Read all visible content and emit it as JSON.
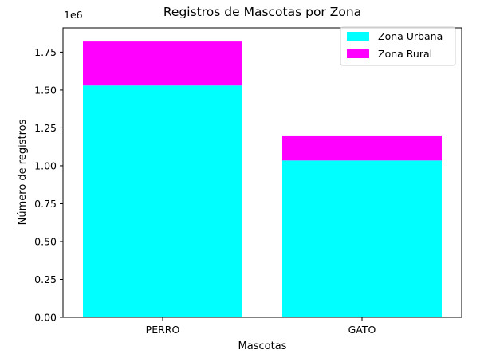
{
  "chart_data": {
    "type": "bar",
    "stacked": true,
    "title": "Registros de Mascotas por Zona",
    "xlabel": "Mascotas",
    "ylabel": "Número de registros",
    "categories": [
      "PERRO",
      "GATO"
    ],
    "series": [
      {
        "name": "Zona Urbana",
        "values": [
          1530000,
          1035000
        ],
        "color": "#00ffff"
      },
      {
        "name": "Zona Rural",
        "values": [
          290000,
          165000
        ],
        "color": "#ff00ff"
      }
    ],
    "ylim": [
      0,
      1910000
    ],
    "yticks": [
      0,
      250000,
      500000,
      750000,
      1000000,
      1250000,
      1500000,
      1750000
    ],
    "ytick_labels": [
      "0.00",
      "0.25",
      "0.50",
      "0.75",
      "1.00",
      "1.25",
      "1.50",
      "1.75"
    ],
    "y_offset_label": "1e6",
    "legend_position": "top-right",
    "grid": false
  }
}
